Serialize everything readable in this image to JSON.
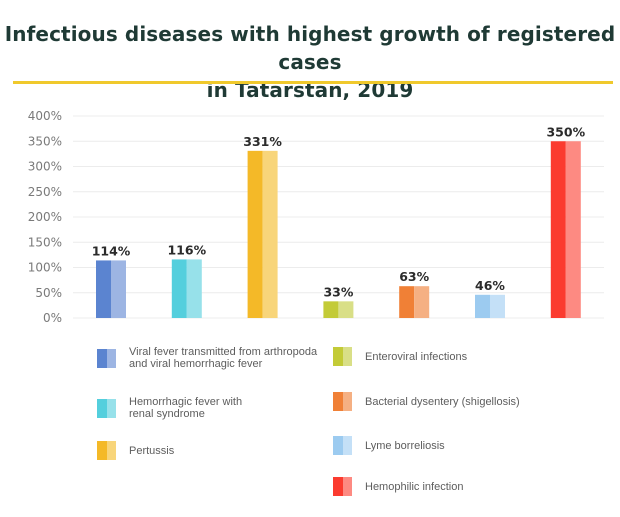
{
  "chart_data": {
    "type": "bar",
    "title": "Infectious diseases with highest growth of registered cases in Tatarstan, 2019",
    "title_lines": [
      "Infectious diseases with highest growth of registered cases",
      "in Tatarstan, 2019"
    ],
    "xlabel": "",
    "ylabel": "",
    "ylim": [
      0,
      400
    ],
    "yticks": [
      0,
      50,
      100,
      150,
      200,
      250,
      300,
      350,
      400
    ],
    "ytick_labels": [
      "0%",
      "50%",
      "100%",
      "150%",
      "200%",
      "250%",
      "300%",
      "350%",
      "400%"
    ],
    "grid": true,
    "legend_position": "bottom",
    "categories": [
      "Viral fever transmitted from arthropoda and viral hemorrhagic fever",
      "Hemorrhagic fever with renal syndrome",
      "Pertussis",
      "Enteroviral infections",
      "Bacterial dysentery (shigellosis)",
      "Lyme borreliosis",
      "Hemophilic infection"
    ],
    "values": [
      114,
      116,
      331,
      33,
      63,
      46,
      350
    ],
    "value_labels": [
      "114%",
      "116%",
      "331%",
      "33%",
      "63%",
      "46%",
      "350%"
    ],
    "colors": [
      {
        "dark": "#5b84d0",
        "light": "#9db5e3"
      },
      {
        "dark": "#54cfdd",
        "light": "#97e1ea"
      },
      {
        "dark": "#f4b928",
        "light": "#f8d57a"
      },
      {
        "dark": "#c3cb37",
        "light": "#d9df87"
      },
      {
        "dark": "#f08036",
        "light": "#f5b083"
      },
      {
        "dark": "#9ccbf0",
        "light": "#c4e0f7"
      },
      {
        "dark": "#fb3b2f",
        "light": "#fd8a82"
      }
    ]
  },
  "legend": {
    "items": [
      {
        "label": "Viral fever transmitted from arthropoda\nand viral hemorrhagic fever"
      },
      {
        "label": "Hemorrhagic fever with\nrenal syndrome"
      },
      {
        "label": "Pertussis"
      },
      {
        "label": "Enteroviral infections"
      },
      {
        "label": "Bacterial dysentery (shigellosis)"
      },
      {
        "label": "Lyme borreliosis"
      },
      {
        "label": "Hemophilic infection"
      }
    ]
  },
  "accent_color": "#f0c92c"
}
